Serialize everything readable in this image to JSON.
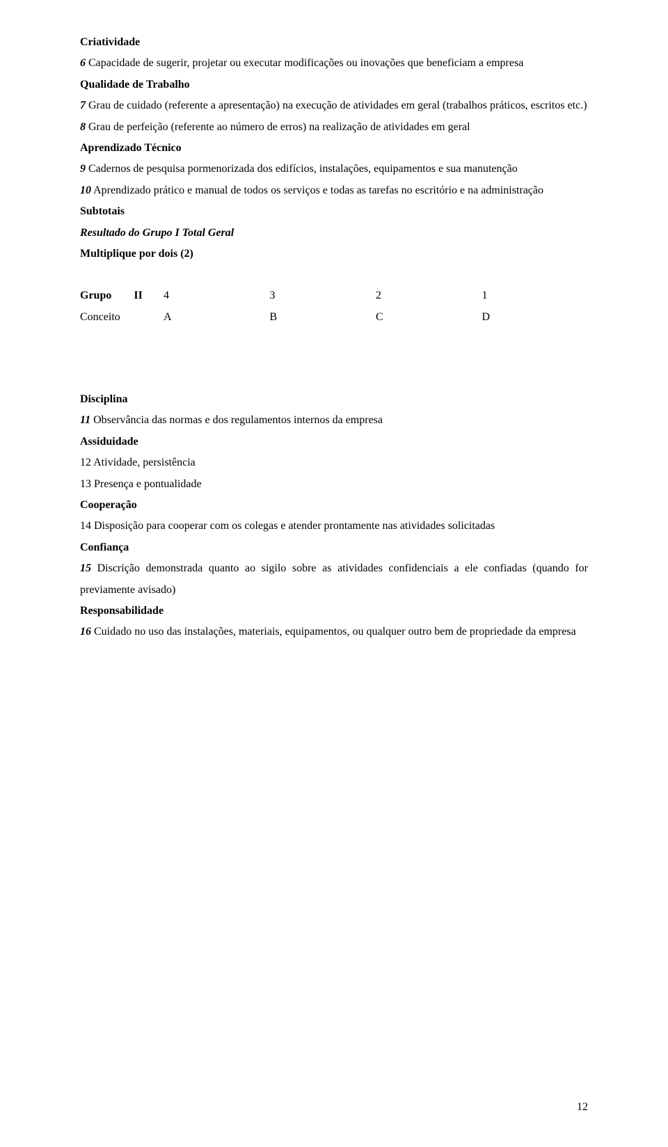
{
  "section1": {
    "h1": "Criatividade",
    "p1a": "6",
    "p1b": " Capacidade de sugerir, projetar ou executar modificações ou inovações que beneficiam a empresa",
    "h2": "Qualidade de Trabalho",
    "p2a": "7",
    "p2b": " Grau de cuidado (referente a apresentação) na execução de atividades em geral (trabalhos práticos, escritos etc.)",
    "p3a": "8",
    "p3b": " Grau de perfeição (referente ao número de erros) na realização de atividades em geral",
    "h3": "Aprendizado Técnico",
    "p4a": "9",
    "p4b": " Cadernos de pesquisa pormenorizada dos edifícios, instalações, equipamentos e sua manutenção",
    "p5a": "10",
    "p5b": " Aprendizado prático e manual de todos os serviços e todas as tarefas no escritório e na administração",
    "h4": "Subtotais",
    "h5": "Resultado do Grupo I Total Geral",
    "h6": "Multiplique por dois (2)"
  },
  "table": {
    "r1": {
      "label1": "Grupo",
      "label2": "II",
      "c1": "4",
      "c2": "3",
      "c3": "2",
      "c4": "1"
    },
    "r2": {
      "label": "Conceito",
      "c1": "A",
      "c2": "B",
      "c3": "C",
      "c4": "D"
    }
  },
  "section2": {
    "h1": "Disciplina",
    "p1a": "11",
    "p1b": " Observância das normas e dos regulamentos internos da empresa",
    "h2": "Assiduidade",
    "p2": "12 Atividade, persistência",
    "p3": "13 Presença e pontualidade",
    "h3": "Cooperação",
    "p4": "14 Disposição para cooperar com os colegas e atender prontamente nas atividades solicitadas",
    "h4": "Confiança",
    "p5a": "15",
    "p5b": " Discrição demonstrada quanto ao sigilo sobre as atividades confidenciais a ele confiadas (quando for previamente avisado)",
    "h5": "Responsabilidade",
    "p6a": "16",
    "p6b": " Cuidado no uso das instalações, materiais, equipamentos, ou qualquer outro bem de propriedade da empresa"
  },
  "pageNumber": "12"
}
